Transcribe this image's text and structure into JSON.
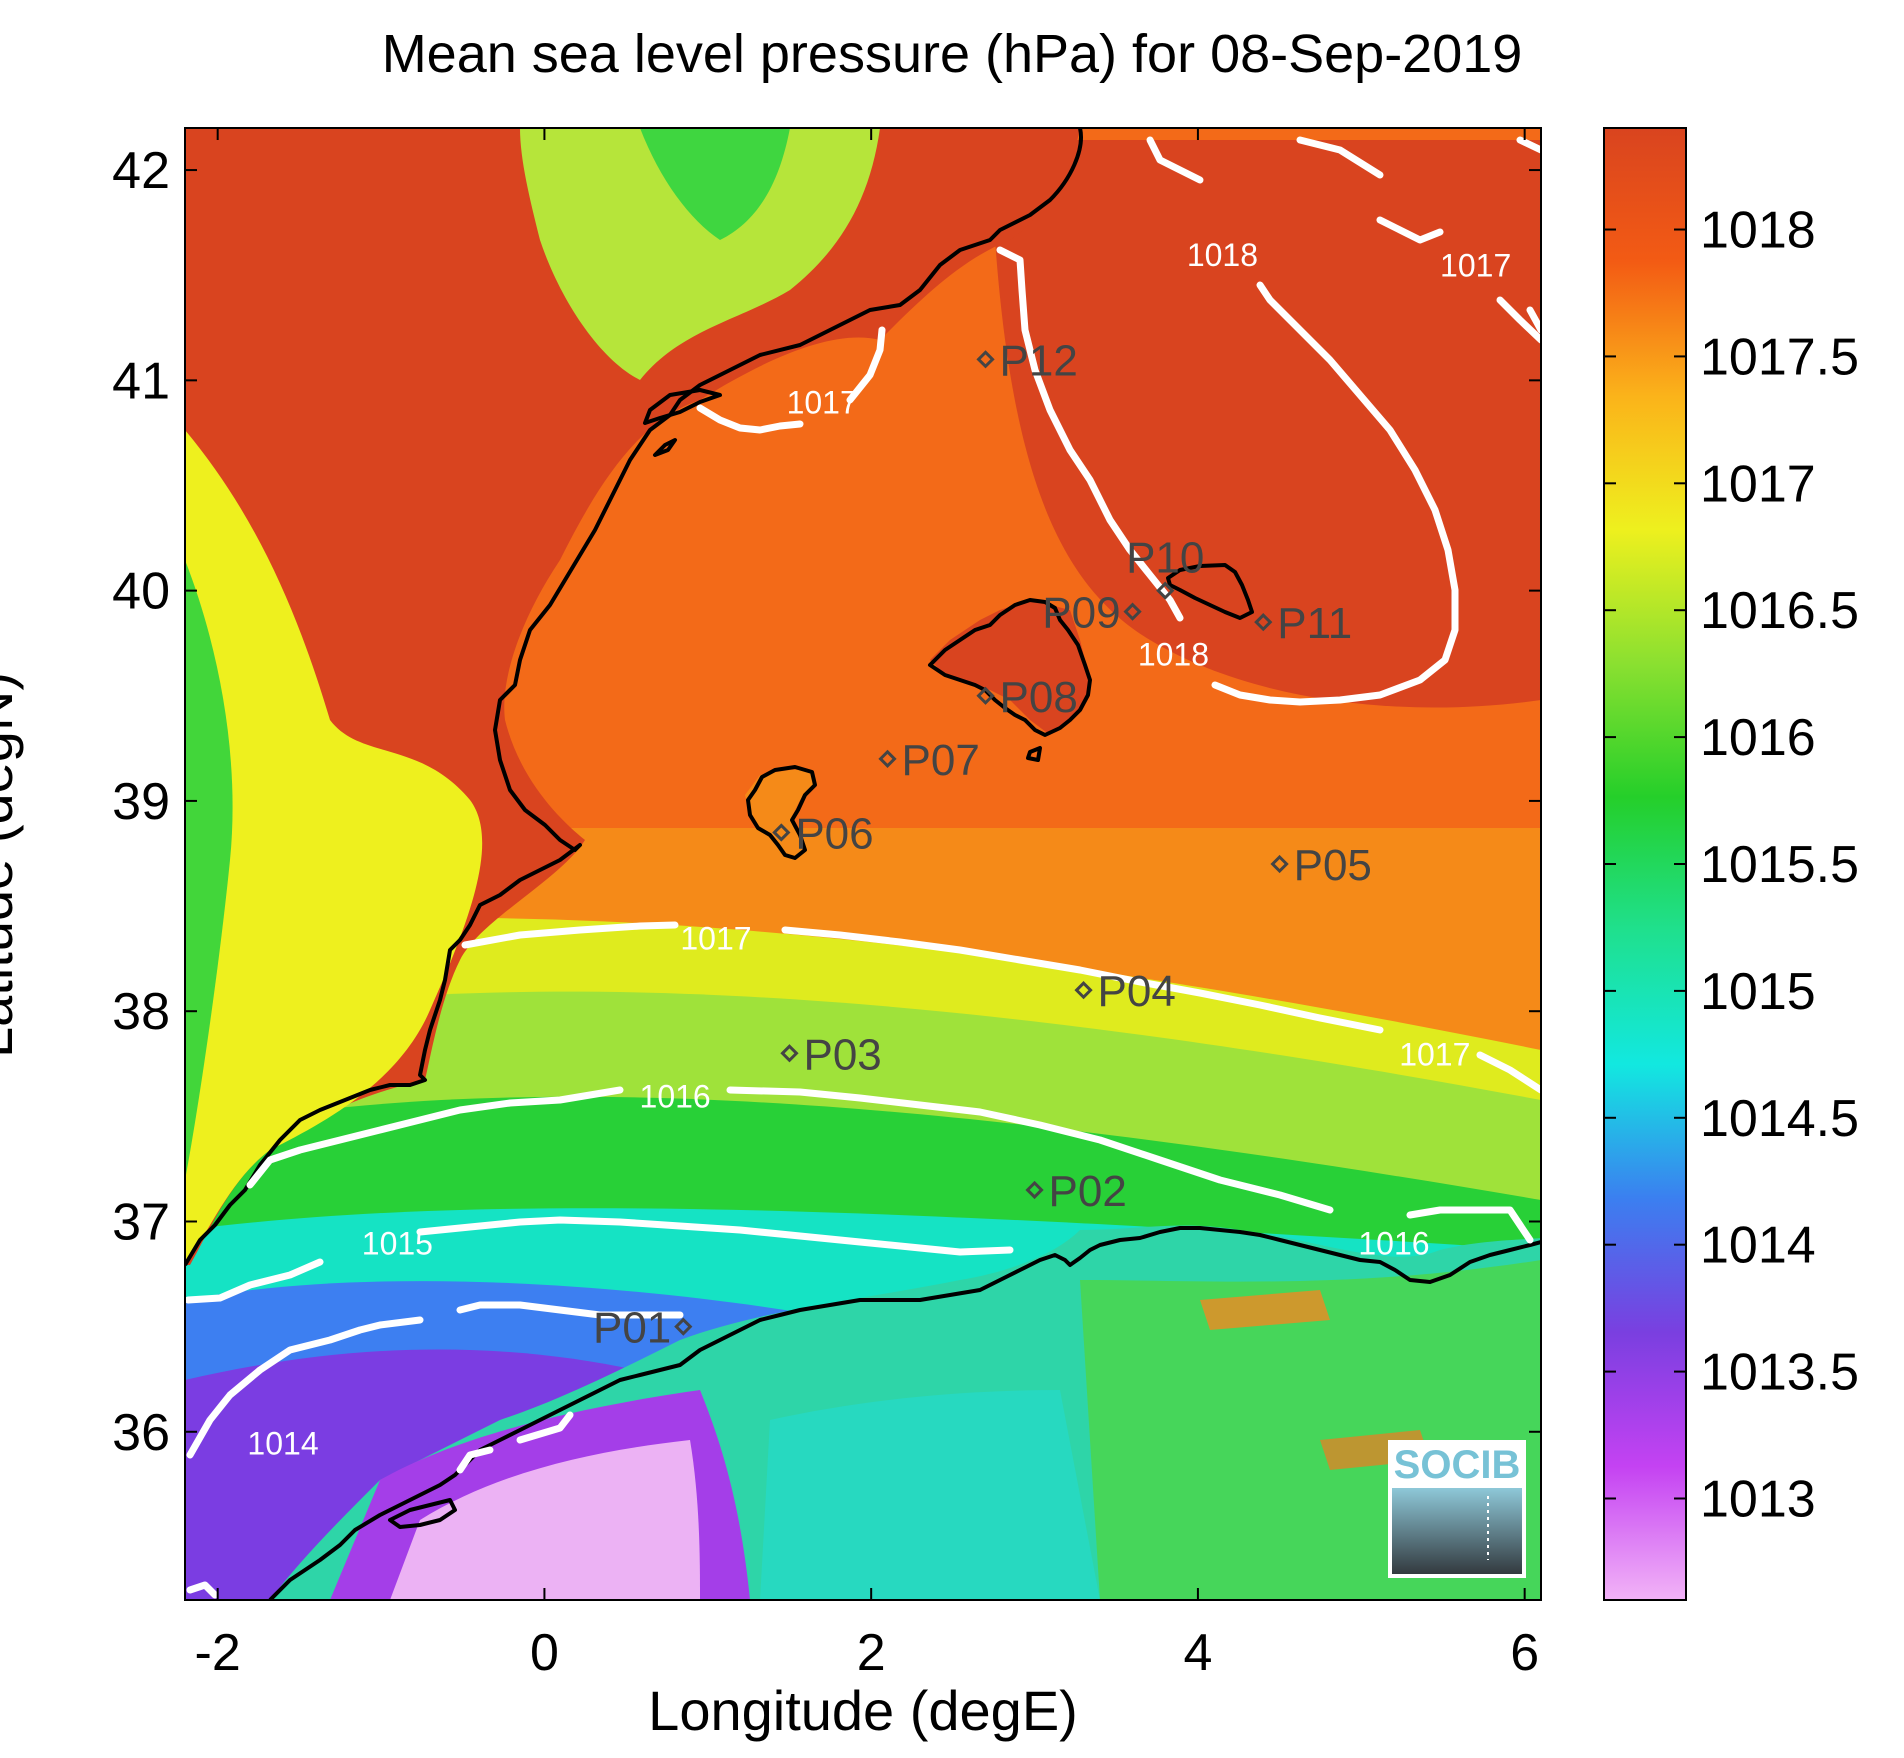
{
  "title": "Mean sea level pressure (hPa) for 08-Sep-2019",
  "xlabel": "Longitude (degE)",
  "ylabel": "Latitude (degN)",
  "xaxis": {
    "range": [
      -2.2,
      6.1
    ],
    "ticks": [
      -2,
      0,
      2,
      4,
      6
    ]
  },
  "yaxis": {
    "range": [
      35.2,
      42.2
    ],
    "ticks": [
      36,
      37,
      38,
      39,
      40,
      41,
      42
    ]
  },
  "colorbar": {
    "range": [
      1012.6,
      1018.4
    ],
    "ticks": [
      1013,
      1013.5,
      1014,
      1014.5,
      1015,
      1015.5,
      1016,
      1016.5,
      1017,
      1017.5,
      1018
    ],
    "colors": [
      "#f2b3f7",
      "#c442f2",
      "#7a3fe0",
      "#3b7ff0",
      "#12e8e0",
      "#1fe08e",
      "#25cf2a",
      "#8be030",
      "#eef01e",
      "#fbb31a",
      "#f35b14",
      "#d9441f"
    ]
  },
  "contours": [
    {
      "level": "1014",
      "label_lon": -1.6,
      "label_lat": 35.95
    },
    {
      "level": "1015",
      "label_lon": -0.9,
      "label_lat": 36.9
    },
    {
      "level": "1016",
      "label_lon": 0.8,
      "label_lat": 37.6
    },
    {
      "level": "1016",
      "label_lon": 5.2,
      "label_lat": 36.9
    },
    {
      "level": "1017",
      "label_lon": 1.05,
      "label_lat": 38.35
    },
    {
      "level": "1017",
      "label_lon": 5.45,
      "label_lat": 37.8
    },
    {
      "level": "1017",
      "label_lon": 1.7,
      "label_lat": 40.9
    },
    {
      "level": "1017",
      "label_lon": 5.7,
      "label_lat": 41.55
    },
    {
      "level": "1018",
      "label_lon": 4.15,
      "label_lat": 41.6
    },
    {
      "level": "1018",
      "label_lon": 3.85,
      "label_lat": 39.7
    }
  ],
  "stations": [
    {
      "name": "P01",
      "lon": 0.85,
      "lat": 36.5,
      "label_side": "left"
    },
    {
      "name": "P02",
      "lon": 3.0,
      "lat": 37.15,
      "label_side": "right"
    },
    {
      "name": "P03",
      "lon": 1.5,
      "lat": 37.8,
      "label_side": "right"
    },
    {
      "name": "P04",
      "lon": 3.3,
      "lat": 38.1,
      "label_side": "right"
    },
    {
      "name": "P05",
      "lon": 4.5,
      "lat": 38.7,
      "label_side": "right"
    },
    {
      "name": "P06",
      "lon": 1.45,
      "lat": 38.85,
      "label_side": "right"
    },
    {
      "name": "P07",
      "lon": 2.1,
      "lat": 39.2,
      "label_side": "right"
    },
    {
      "name": "P08",
      "lon": 2.7,
      "lat": 39.5,
      "label_side": "right"
    },
    {
      "name": "P09",
      "lon": 3.6,
      "lat": 39.9,
      "label_side": "left"
    },
    {
      "name": "P10",
      "lon": 3.8,
      "lat": 40.0,
      "label_side": "above"
    },
    {
      "name": "P11",
      "lon": 4.4,
      "lat": 39.85,
      "label_side": "right"
    },
    {
      "name": "P12",
      "lon": 2.7,
      "lat": 41.1,
      "label_side": "right"
    }
  ],
  "logo": {
    "text": "SOCIB"
  }
}
